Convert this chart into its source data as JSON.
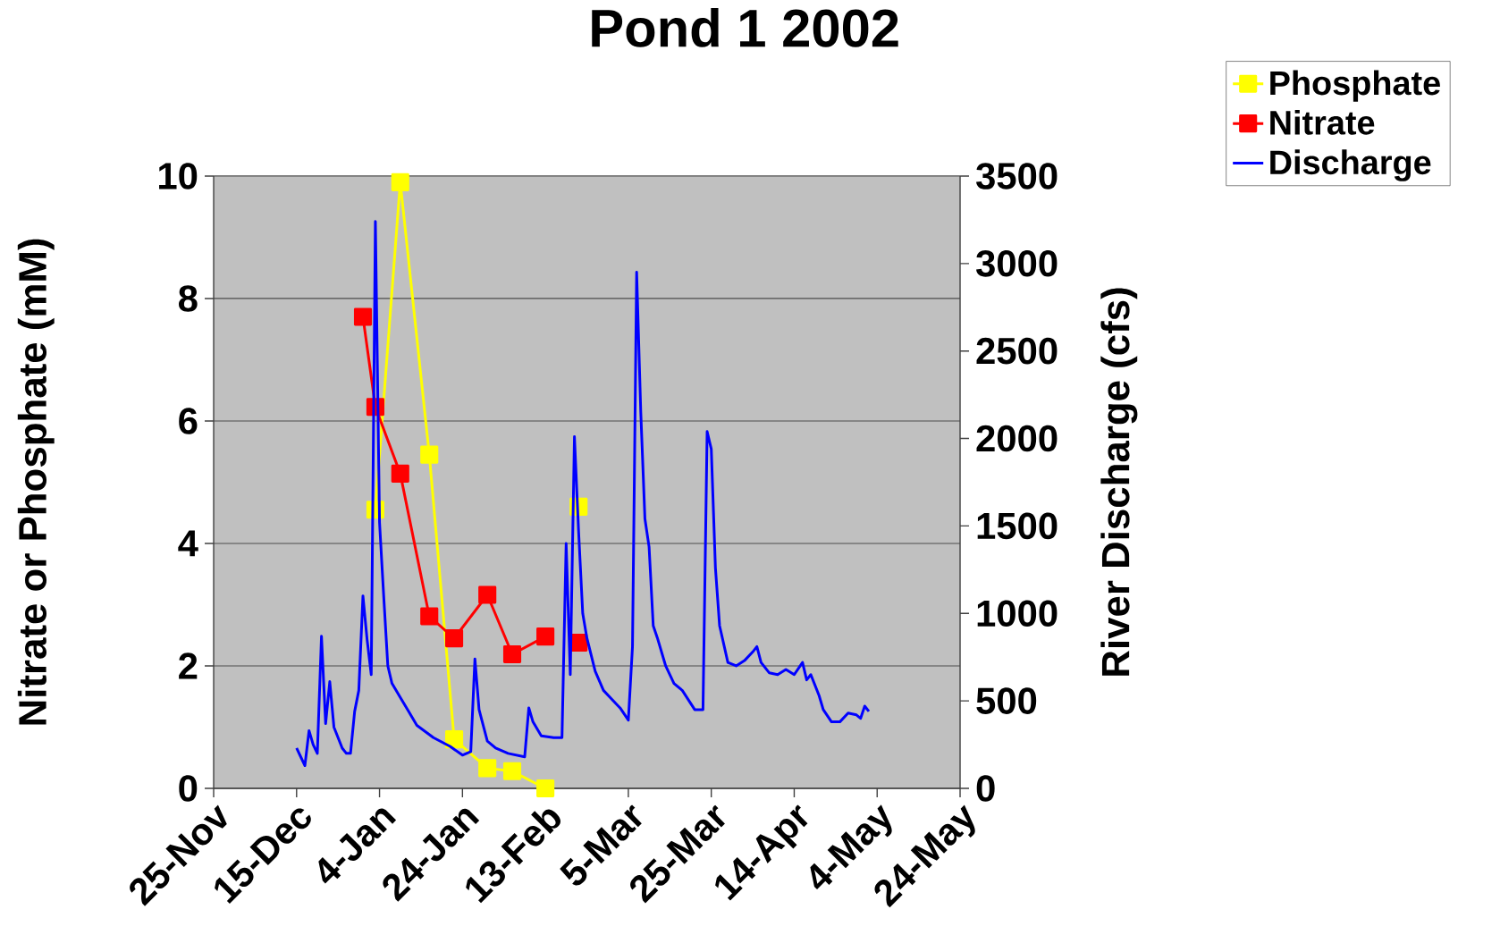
{
  "chart_data": {
    "type": "line",
    "title": "Pond 1  2002",
    "ylabel": "Nitrate or Phosphate (mM)",
    "y2label": "River Discharge (cfs)",
    "xlim": [
      "2001-11-25",
      "2002-05-24"
    ],
    "xticks": [
      {
        "value": "2001-11-25",
        "label": "25-Nov"
      },
      {
        "value": "2001-12-15",
        "label": "15-Dec"
      },
      {
        "value": "2002-01-04",
        "label": "4-Jan"
      },
      {
        "value": "2002-01-24",
        "label": "24-Jan"
      },
      {
        "value": "2002-02-13",
        "label": "13-Feb"
      },
      {
        "value": "2002-03-05",
        "label": "5-Mar"
      },
      {
        "value": "2002-03-25",
        "label": "25-Mar"
      },
      {
        "value": "2002-04-14",
        "label": "14-Apr"
      },
      {
        "value": "2002-05-04",
        "label": "4-May"
      },
      {
        "value": "2002-05-24",
        "label": "24-May"
      }
    ],
    "ylim": [
      0,
      10
    ],
    "yticks": [
      0,
      2,
      4,
      6,
      8,
      10
    ],
    "y2lim": [
      0,
      3500
    ],
    "y2ticks": [
      0,
      500,
      1000,
      1500,
      2000,
      2500,
      3000,
      3500
    ],
    "grid": "y",
    "legend": "top right",
    "series": [
      {
        "name": "Phosphate",
        "color": "#ffff00",
        "marker": "square",
        "x": [
          "2002-01-03",
          "2002-01-09",
          "2002-01-16",
          "2002-01-22",
          "2002-01-30",
          "2002-02-05",
          "2002-02-13",
          "2002-02-17",
          "2002-02-21"
        ],
        "values": [
          4.55,
          9.9,
          5.45,
          0.8,
          0.33,
          0.28,
          0.0,
          null,
          4.6
        ]
      },
      {
        "name": "Nitrate",
        "color": "#ff0000",
        "marker": "square",
        "x": [
          "2001-12-31",
          "2002-01-03",
          "2002-01-09",
          "2002-01-16",
          "2002-01-22",
          "2002-01-30",
          "2002-02-05",
          "2002-02-13",
          "2002-02-17",
          "2002-02-21"
        ],
        "values": [
          7.7,
          6.23,
          5.14,
          2.81,
          2.45,
          3.16,
          2.19,
          2.48,
          null,
          2.38
        ]
      },
      {
        "name": "Discharge",
        "color": "#0000ff",
        "marker": "none",
        "axis": "y2",
        "x": [
          "2001-12-15",
          "2001-12-16",
          "2001-12-17",
          "2001-12-18",
          "2001-12-19",
          "2001-12-20",
          "2001-12-21",
          "2001-12-22",
          "2001-12-23",
          "2001-12-24",
          "2001-12-25",
          "2001-12-26",
          "2001-12-27",
          "2001-12-28",
          "2001-12-29",
          "2001-12-30",
          "2001-12-31",
          "2002-01-01",
          "2002-01-02",
          "2002-01-03",
          "2002-01-04",
          "2002-01-05",
          "2002-01-06",
          "2002-01-07",
          "2002-01-08",
          "2002-01-09",
          "2002-01-11",
          "2002-01-13",
          "2002-01-17",
          "2002-01-21",
          "2002-01-24",
          "2002-01-26",
          "2002-01-27",
          "2002-01-28",
          "2002-01-30",
          "2002-02-01",
          "2002-02-04",
          "2002-02-08",
          "2002-02-09",
          "2002-02-10",
          "2002-02-12",
          "2002-02-15",
          "2002-02-17",
          "2002-02-18",
          "2002-02-19",
          "2002-02-20",
          "2002-02-21",
          "2002-02-22",
          "2002-02-23",
          "2002-02-25",
          "2002-02-27",
          "2002-03-01",
          "2002-03-03",
          "2002-03-05",
          "2002-03-06",
          "2002-03-07",
          "2002-03-08",
          "2002-03-09",
          "2002-03-10",
          "2002-03-11",
          "2002-03-12",
          "2002-03-14",
          "2002-03-16",
          "2002-03-18",
          "2002-03-21",
          "2002-03-23",
          "2002-03-24",
          "2002-03-25",
          "2002-03-26",
          "2002-03-27",
          "2002-03-29",
          "2002-03-31",
          "2002-04-02",
          "2002-04-04",
          "2002-04-05",
          "2002-04-06",
          "2002-04-08",
          "2002-04-10",
          "2002-04-12",
          "2002-04-14",
          "2002-04-16",
          "2002-04-17",
          "2002-04-18",
          "2002-04-20",
          "2002-04-21",
          "2002-04-23",
          "2002-04-25",
          "2002-04-27",
          "2002-04-29",
          "2002-04-30",
          "2002-05-01",
          "2002-05-02"
        ],
        "values": [
          230,
          180,
          130,
          330,
          250,
          200,
          870,
          370,
          610,
          350,
          290,
          230,
          200,
          200,
          440,
          560,
          1100,
          850,
          650,
          3240,
          1520,
          1100,
          700,
          600,
          560,
          520,
          440,
          360,
          290,
          240,
          190,
          210,
          740,
          450,
          270,
          230,
          200,
          180,
          460,
          380,
          300,
          290,
          290,
          1400,
          650,
          2010,
          1470,
          1000,
          860,
          670,
          560,
          510,
          460,
          390,
          810,
          2950,
          2150,
          1540,
          1380,
          930,
          860,
          700,
          600,
          560,
          450,
          450,
          2040,
          1940,
          1260,
          930,
          720,
          700,
          730,
          780,
          810,
          720,
          660,
          650,
          680,
          650,
          720,
          620,
          650,
          530,
          450,
          380,
          380,
          430,
          420,
          400,
          470,
          440
        ]
      }
    ]
  }
}
